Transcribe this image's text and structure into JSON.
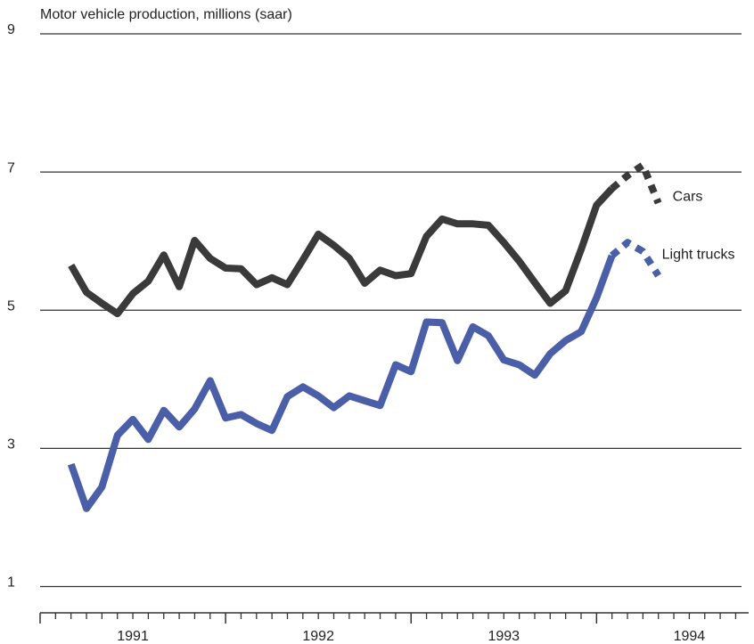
{
  "chart_data": {
    "type": "line",
    "title": "Motor vehicle production, millions (saar)",
    "x": [
      1991.167,
      1991.25,
      1991.333,
      1991.417,
      1991.5,
      1991.583,
      1991.667,
      1991.75,
      1991.833,
      1991.917,
      1992,
      1992.083,
      1992.167,
      1992.25,
      1992.333,
      1992.417,
      1992.5,
      1992.583,
      1992.667,
      1992.75,
      1992.833,
      1992.917,
      1993,
      1993.083,
      1993.167,
      1993.25,
      1993.333,
      1993.417,
      1993.5,
      1993.583,
      1993.667,
      1993.75,
      1993.833,
      1993.917,
      1994,
      1994.083,
      1994.167,
      1994.25,
      1994.333
    ],
    "dotted_from_index": 35,
    "series": [
      {
        "name": "Cars",
        "color": "#3a3a3a",
        "values": [
          5.65,
          5.26,
          5.1,
          4.95,
          5.24,
          5.42,
          5.8,
          5.34,
          6.01,
          5.75,
          5.61,
          5.6,
          5.37,
          5.47,
          5.37,
          5.73,
          6.1,
          5.94,
          5.75,
          5.39,
          5.58,
          5.5,
          5.53,
          6.07,
          6.32,
          6.25,
          6.25,
          6.23,
          5.98,
          5.71,
          5.4,
          5.1,
          5.28,
          5.88,
          6.52,
          6.76,
          6.95,
          7.1,
          6.55
        ]
      },
      {
        "name": "Light trucks",
        "color": "#4a5fa8",
        "values": [
          2.77,
          2.13,
          2.44,
          3.19,
          3.42,
          3.13,
          3.55,
          3.31,
          3.57,
          3.98,
          3.44,
          3.49,
          3.36,
          3.26,
          3.75,
          3.89,
          3.76,
          3.59,
          3.76,
          3.69,
          3.62,
          4.21,
          4.11,
          4.83,
          4.82,
          4.27,
          4.76,
          4.63,
          4.28,
          4.21,
          4.06,
          4.37,
          4.56,
          4.69,
          5.18,
          5.79,
          5.98,
          5.85,
          5.5
        ]
      }
    ],
    "xlim": [
      1991,
      1994.82
    ],
    "xticks": [
      1991,
      1992,
      1993,
      1994
    ],
    "year_labels": [
      1991,
      1992,
      1993,
      1994
    ],
    "ylim": [
      0.62,
      9
    ],
    "yticks": [
      1,
      3,
      5,
      7,
      9
    ],
    "grid": true
  }
}
